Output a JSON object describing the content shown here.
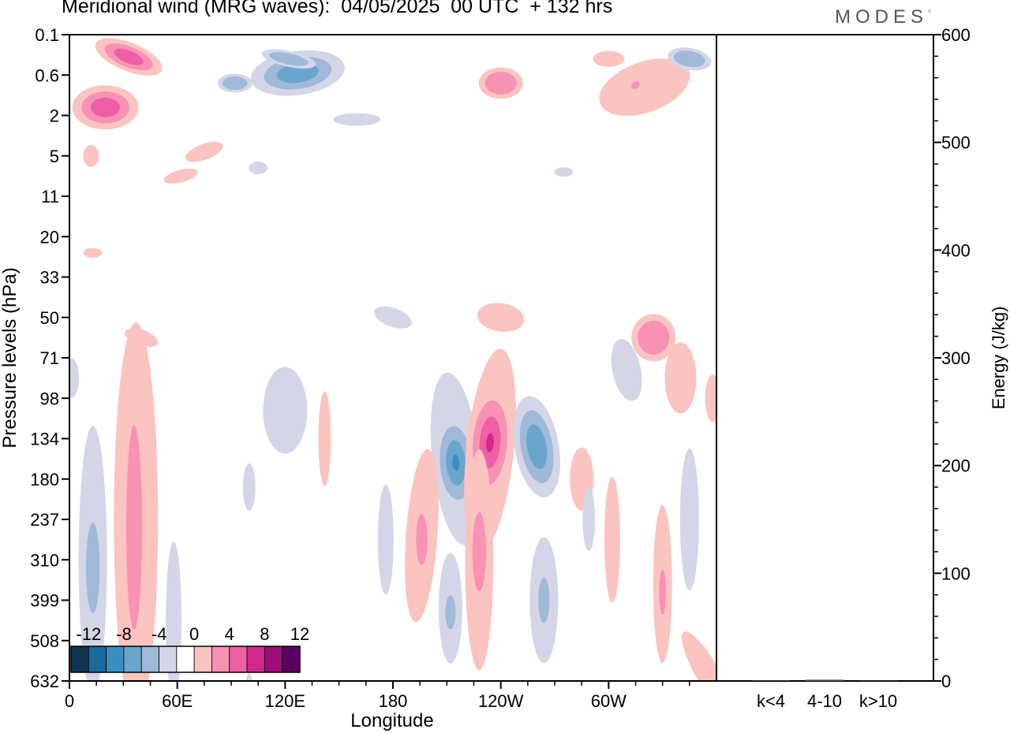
{
  "title": "Meridional wind (MRG waves):  04/05/2025  00 UTC  + 132 hrs",
  "brand": "MODES",
  "brand_mark": "°",
  "chart_data": [
    {
      "type": "heatmap",
      "subtype": "filled-contour",
      "xlabel": "Longitude",
      "ylabel": "Pressure levels (hPa)",
      "x_ticks": [
        "0",
        "60E",
        "120E",
        "180",
        "120W",
        "60W"
      ],
      "x_tick_values": [
        0,
        60,
        120,
        180,
        240,
        300
      ],
      "xlim": [
        0,
        360
      ],
      "y_ticks": [
        "0.1",
        "0.6",
        "2",
        "5",
        "11",
        "20",
        "33",
        "50",
        "71",
        "98",
        "134",
        "180",
        "237",
        "310",
        "399",
        "508",
        "632"
      ],
      "y_scale": "model-level (categorical)",
      "colorbar": {
        "labels": [
          "-12",
          "-8",
          "-4",
          "0",
          "4",
          "8",
          "12"
        ],
        "levels": [
          -14,
          -12,
          -10,
          -8,
          -6,
          -4,
          -2,
          2,
          4,
          6,
          8,
          10,
          12,
          14
        ],
        "colors": [
          "#0d3550",
          "#1a6a9a",
          "#3a8fc0",
          "#6aa5cc",
          "#a0b9d8",
          "#d4d6e8",
          "#ffffff",
          "#fbc4c0",
          "#f892b4",
          "#ee5fa6",
          "#d3288c",
          "#9b0e78",
          "#5a0061"
        ]
      },
      "features": [
        {
          "sign": "neg",
          "lon": 127,
          "level": "0.6",
          "peak": -8
        },
        {
          "sign": "pos",
          "lon": 18,
          "level": "2",
          "peak": 8
        },
        {
          "sign": "pos",
          "lon": 28,
          "level": "0.1",
          "peak": 8
        },
        {
          "sign": "neg",
          "lon": 215,
          "level": "180",
          "peak": -10
        },
        {
          "sign": "pos",
          "lon": 234,
          "level": "134",
          "peak": 12
        },
        {
          "sign": "neg",
          "lon": 260,
          "level": "134",
          "peak": -6
        },
        {
          "sign": "pos",
          "lon": 37,
          "level": "237",
          "peak": 6
        },
        {
          "sign": "neg",
          "lon": 13,
          "level": "237",
          "peak": -6
        },
        {
          "sign": "pos",
          "lon": 325,
          "level": "71",
          "peak": 6
        },
        {
          "sign": "pos",
          "lon": 332,
          "level": "310",
          "peak": 6
        },
        {
          "sign": "neg",
          "lon": 210,
          "level": "399",
          "peak": -6
        },
        {
          "sign": "neg",
          "lon": 264,
          "level": "399",
          "peak": -6
        }
      ]
    },
    {
      "type": "bar",
      "categories": [
        "k<4",
        "4-10",
        "k>10"
      ],
      "values": [
        0.4,
        1.2,
        0.2
      ],
      "ylabel": "Energy (J/kg)",
      "ylim": [
        0,
        600
      ],
      "y_ticks": [
        "0",
        "100",
        "200",
        "300",
        "400",
        "500",
        "600"
      ]
    }
  ]
}
